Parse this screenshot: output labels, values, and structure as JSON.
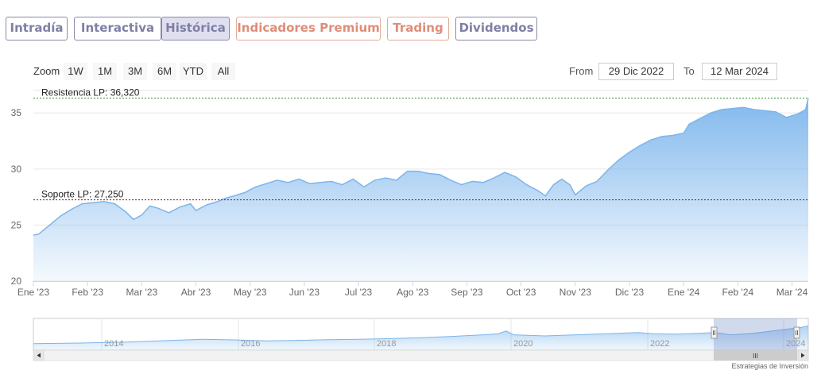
{
  "tabs": [
    {
      "label": "Intradía",
      "style": "purple"
    },
    {
      "label": "Interactiva",
      "style": "purple"
    },
    {
      "label": "Histórica",
      "style": "active"
    },
    {
      "label": "Indicadores Premium",
      "style": "orange"
    },
    {
      "label": "Trading",
      "style": "orange"
    },
    {
      "label": "Dividendos",
      "style": "purple"
    }
  ],
  "zoom": {
    "label": "Zoom",
    "buttons": [
      "1W",
      "1M",
      "3M",
      "6M",
      "YTD",
      "All"
    ]
  },
  "range": {
    "from_label": "From",
    "from_value": "29 Dic 2022",
    "to_label": "To",
    "to_value": "12 Mar 2024"
  },
  "credits": "Estrategias de Inversión",
  "colors": {
    "accent": "#7cb5ec",
    "tab_purple": "#7f7fa6",
    "tab_orange": "#e08d79",
    "line": "#7cb5ec"
  },
  "chart_data": {
    "type": "area",
    "title": "",
    "xlabel": "",
    "ylabel": "",
    "ylim": [
      20,
      37
    ],
    "yticks": [
      20,
      25,
      30,
      35
    ],
    "xlim": [
      0,
      14.3
    ],
    "xticks": [
      {
        "label": "Ene '23",
        "x": 0
      },
      {
        "label": "Feb '23",
        "x": 1
      },
      {
        "label": "Mar '23",
        "x": 2
      },
      {
        "label": "Abr '23",
        "x": 3
      },
      {
        "label": "May '23",
        "x": 4
      },
      {
        "label": "Jun '23",
        "x": 5
      },
      {
        "label": "Jul '23",
        "x": 6
      },
      {
        "label": "Ago '23",
        "x": 7
      },
      {
        "label": "Sep '23",
        "x": 8
      },
      {
        "label": "Oct '23",
        "x": 9
      },
      {
        "label": "Nov '23",
        "x": 10
      },
      {
        "label": "Dic '23",
        "x": 11
      },
      {
        "label": "Ene '24",
        "x": 12
      },
      {
        "label": "Feb '24",
        "x": 13
      },
      {
        "label": "Mar '24",
        "x": 14
      }
    ],
    "x": [
      -0.05,
      0.1,
      0.3,
      0.5,
      0.7,
      0.9,
      1.1,
      1.3,
      1.5,
      1.7,
      1.85,
      2.0,
      2.15,
      2.3,
      2.5,
      2.7,
      2.9,
      3.0,
      3.2,
      3.4,
      3.55,
      3.7,
      3.9,
      4.1,
      4.3,
      4.5,
      4.7,
      4.9,
      5.1,
      5.3,
      5.5,
      5.7,
      5.9,
      6.1,
      6.3,
      6.5,
      6.7,
      6.9,
      7.1,
      7.3,
      7.5,
      7.7,
      7.9,
      8.1,
      8.3,
      8.5,
      8.7,
      8.9,
      9.1,
      9.3,
      9.45,
      9.6,
      9.75,
      9.9,
      10.0,
      10.2,
      10.4,
      10.6,
      10.8,
      11.0,
      11.2,
      11.4,
      11.6,
      11.8,
      12.0,
      12.1,
      12.3,
      12.5,
      12.7,
      12.9,
      13.1,
      13.3,
      13.5,
      13.7,
      13.9,
      14.1,
      14.25,
      14.3
    ],
    "series": [
      {
        "values": [
          24.1,
          24.2,
          25.0,
          25.8,
          26.4,
          26.9,
          27.0,
          27.1,
          26.9,
          26.2,
          25.5,
          25.9,
          26.7,
          26.5,
          26.1,
          26.6,
          26.9,
          26.3,
          26.8,
          27.1,
          27.4,
          27.6,
          27.9,
          28.4,
          28.7,
          29.0,
          28.8,
          29.1,
          28.7,
          28.8,
          28.9,
          28.6,
          29.1,
          28.4,
          29.0,
          29.2,
          29.0,
          29.8,
          29.8,
          29.6,
          29.5,
          29.0,
          28.6,
          28.9,
          28.8,
          29.2,
          29.7,
          29.3,
          28.6,
          28.1,
          27.6,
          28.6,
          29.1,
          28.6,
          27.7,
          28.5,
          28.9,
          29.9,
          30.8,
          31.5,
          32.1,
          32.6,
          32.9,
          33.0,
          33.2,
          34.0,
          34.5,
          35.0,
          35.3,
          35.4,
          35.5,
          35.3,
          35.2,
          35.1,
          34.6,
          34.9,
          35.3,
          36.3
        ]
      }
    ],
    "annotations": [
      {
        "label": "Resistencia LP: 36,320",
        "value": 36.32,
        "color": "#2e8b2e"
      },
      {
        "label": "Soporte LP: 27,250",
        "value": 27.25,
        "color": "#8b1a1a"
      }
    ],
    "navigator": {
      "year_labels": [
        "2014",
        "2016",
        "2018",
        "2020",
        "2022",
        "2024"
      ],
      "scroll_grip": "III"
    },
    "grid": true,
    "legend": "none"
  }
}
